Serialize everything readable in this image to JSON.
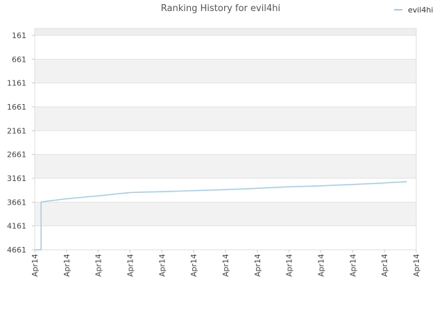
{
  "chart_data": {
    "type": "line",
    "title": "Ranking History for evil4hi",
    "xlabel": "",
    "ylabel": "",
    "y_inverted": true,
    "ylim": [
      161,
      4661
    ],
    "y_ticks": [
      161,
      661,
      1161,
      1661,
      2161,
      2661,
      3161,
      3661,
      4161,
      4661
    ],
    "x_ticks": [
      "Apr14",
      "Apr14",
      "Apr14",
      "Apr14",
      "Apr14",
      "Apr14",
      "Apr14",
      "Apr14",
      "Apr14",
      "Apr14",
      "Apr14",
      "Apr14",
      "Apr14"
    ],
    "grid": true,
    "legend_position": "top-right",
    "series": [
      {
        "name": "evil4hi",
        "color": "#99ccee",
        "x": [
          0,
          0.2,
          0.2,
          0.4,
          1,
          2,
          3,
          4,
          5,
          6,
          7,
          8,
          9,
          10,
          11,
          11.7
        ],
        "values": [
          4661,
          4661,
          3661,
          3640,
          3590,
          3530,
          3460,
          3440,
          3420,
          3400,
          3370,
          3340,
          3320,
          3290,
          3260,
          3230
        ]
      }
    ],
    "x_range": [
      0,
      12
    ]
  }
}
